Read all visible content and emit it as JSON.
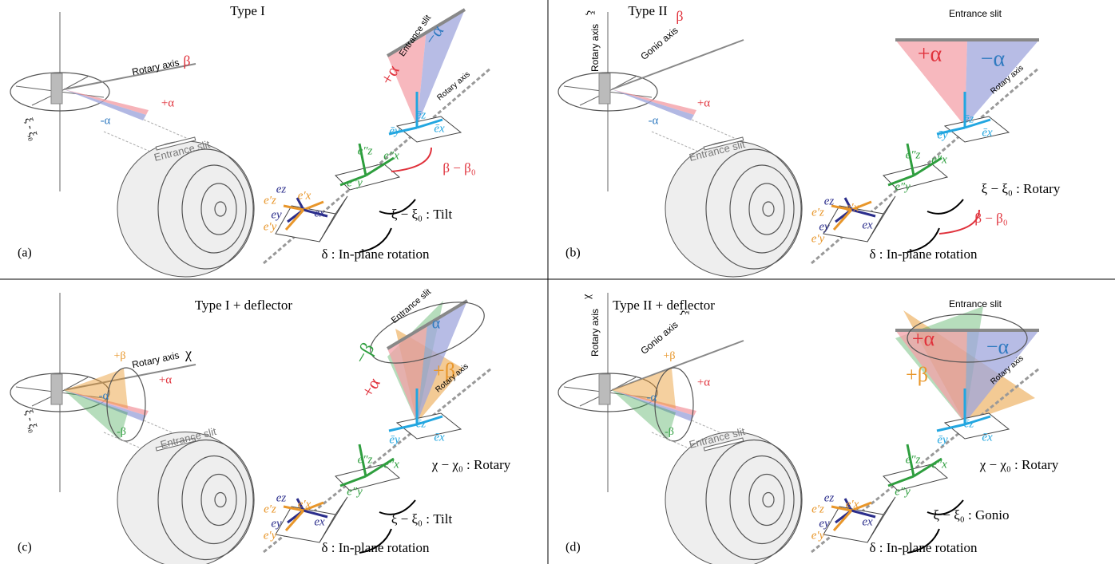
{
  "panels": [
    {
      "labels": [
        "Type I",
        "(a)",
        "Rotary axis",
        "β",
        "+α",
        "-α",
        "ξ - ξ₀",
        "Entrance slit",
        "Entrance slit",
        "+α",
        "−α",
        "Rotary axis",
        "ēz",
        "ēy",
        "ēx",
        "e″z",
        "e″y",
        "e″x",
        "β − β₀",
        "ez",
        "e′z",
        "e′x",
        "ey",
        "ex",
        "e′y",
        "ξ − ξ₀ : Tilt",
        "δ : In-plane rotation"
      ]
    },
    {
      "labels": [
        "Type II",
        "(b)",
        "Rotary axis",
        "ξ",
        "Gonio axis",
        "β",
        "+α",
        "-α",
        "Entrance slit",
        "Entrance slit",
        "+α",
        "−α",
        "Rotary axis",
        "ēz",
        "ēy",
        "ēx",
        "e″z",
        "e″y",
        "e″x",
        "ξ − ξ₀ : Rotary",
        "ez",
        "e′z",
        "e′x",
        "ey",
        "ex",
        "e′y",
        "β − β₀",
        "δ : In-plane rotation"
      ]
    },
    {
      "labels": [
        "Type I + deflector",
        "(c)",
        "Rotary axis",
        "χ",
        "+β",
        "+α",
        "-α",
        "-β",
        "ξ - ξ₀",
        "Entrance slit",
        "Entrance slit",
        "−β",
        "+α",
        "+β",
        "α",
        "Rotary axis",
        "ēz",
        "ēy",
        "ēx",
        "e″z",
        "e″y",
        "e″x",
        "χ − χ₀ : Rotary",
        "ez",
        "e′z",
        "e′x",
        "ey",
        "ex",
        "e′y",
        "ξ − ξ₀ : Tilt",
        "δ : In-plane rotation"
      ]
    },
    {
      "labels": [
        "Type II + deflector",
        "(d)",
        "Rotary axis",
        "χ",
        "Gonio axis",
        "ξ",
        "+β",
        "+α",
        "-α",
        "-β",
        "Entrance slit",
        "Entrance slit",
        "+α",
        "+β",
        "−α",
        "Rotary axis",
        "ēz",
        "ēy",
        "ēx",
        "e″z",
        "e″y",
        "e″x",
        "χ − χ₀ : Rotary",
        "ez",
        "e′z",
        "e′x",
        "ey",
        "ex",
        "e′y",
        "ξ − ξ₀ : Gonio",
        "δ : In-plane rotation"
      ]
    }
  ]
}
